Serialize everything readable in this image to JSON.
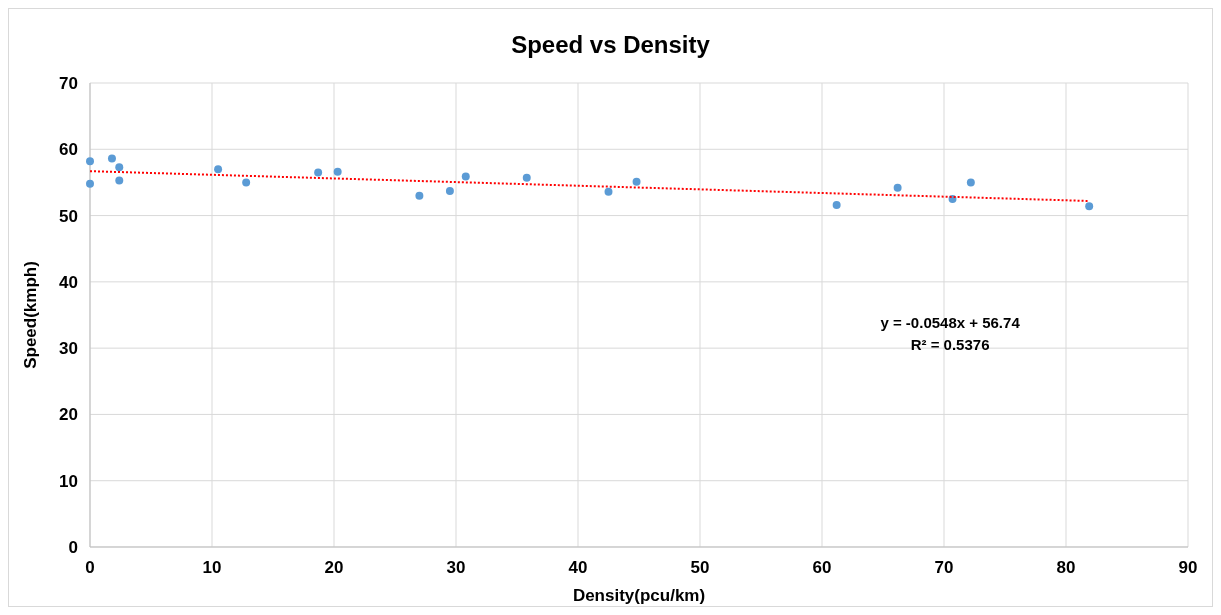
{
  "chart_data": {
    "type": "scatter",
    "title": "Speed vs Density",
    "xlabel": "Density(pcu/km)",
    "ylabel": "Speed(kmph)",
    "xlim": [
      0,
      90
    ],
    "xticks": [
      0,
      10,
      20,
      30,
      40,
      50,
      60,
      70,
      80,
      90
    ],
    "ylim": [
      0,
      70
    ],
    "yticks": [
      0,
      10,
      20,
      30,
      40,
      50,
      60,
      70
    ],
    "grid": true,
    "series": [
      {
        "marker": "circle",
        "color": "#5b9bd5",
        "x": [
          0,
          0,
          1.8,
          2.4,
          2.4,
          10.5,
          12.8,
          18.7,
          20.3,
          27.0,
          29.5,
          30.8,
          35.8,
          42.5,
          44.8,
          61.2,
          66.2,
          70.7,
          72.2,
          81.9
        ],
        "values": [
          54.8,
          58.2,
          58.6,
          57.3,
          55.3,
          57.0,
          55.0,
          56.5,
          56.6,
          53.0,
          53.7,
          55.9,
          55.7,
          53.6,
          55.1,
          51.6,
          54.2,
          52.5,
          55.0,
          51.4
        ]
      },
      {
        "type": "line",
        "color": "#ff0000",
        "line_style": "dotted",
        "x": [
          0,
          81.9
        ],
        "values": [
          56.7,
          52.2
        ]
      }
    ],
    "annotations": [
      "y = -0.0548x + 56.74",
      "R² = 0.5376"
    ]
  }
}
